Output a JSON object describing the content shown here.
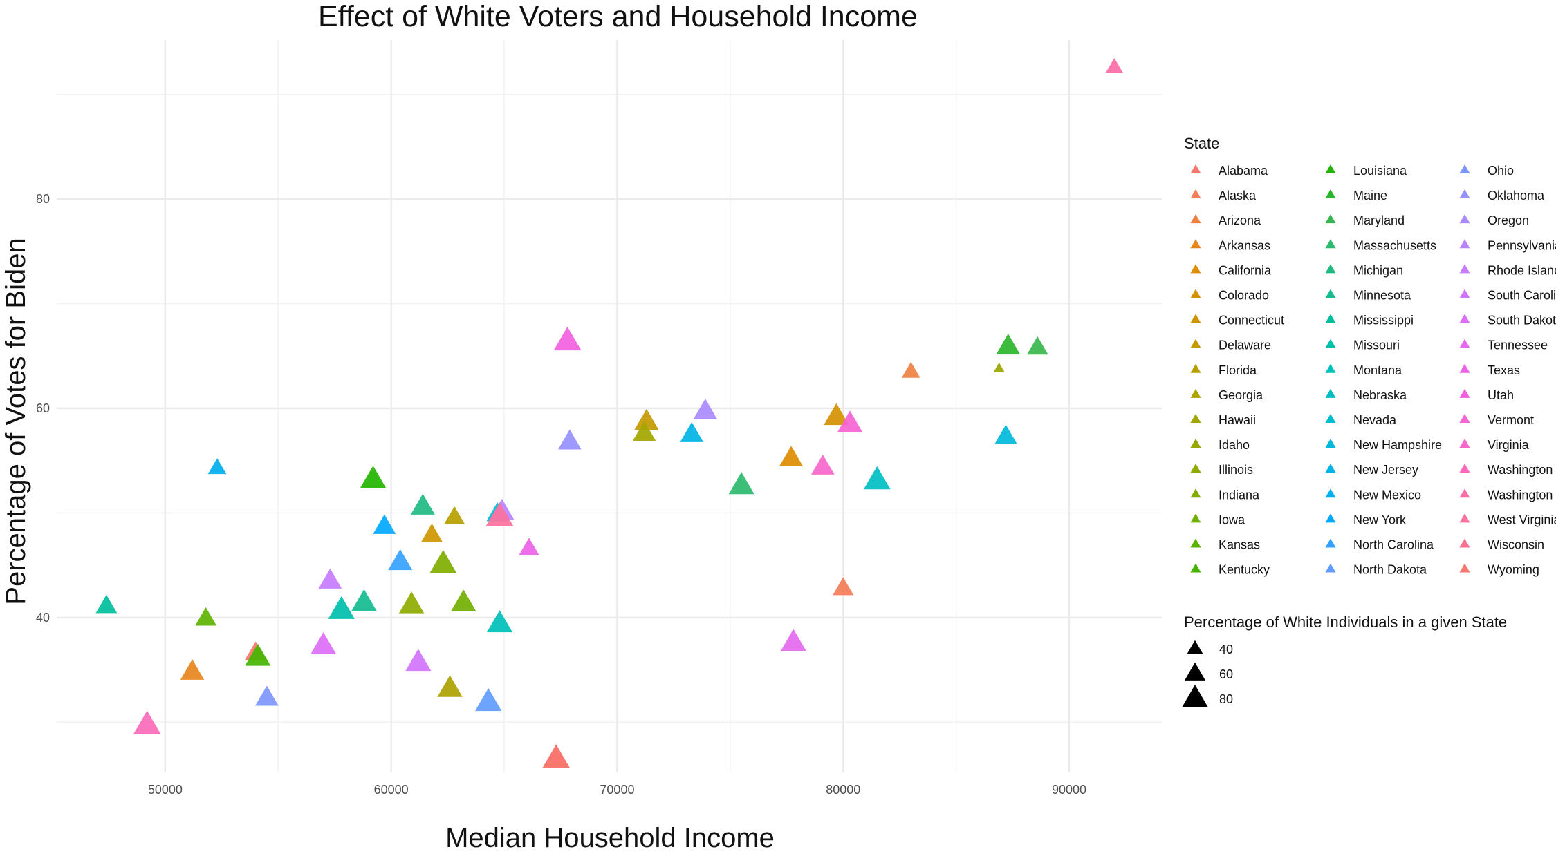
{
  "chart_data": {
    "type": "scatter",
    "title": "Effect of White Voters and Household Income",
    "xlabel": "Median Household Income",
    "ylabel": "Percentage of Votes for Biden",
    "xlim": [
      45200,
      94100
    ],
    "ylim": [
      25.2,
      95.2
    ],
    "x_ticks": [
      50000,
      60000,
      70000,
      80000,
      90000
    ],
    "y_ticks": [
      40,
      60,
      80
    ],
    "x_tick_labels": [
      "50000",
      "60000",
      "70000",
      "80000",
      "90000"
    ],
    "y_tick_labels": [
      "40",
      "60",
      "80"
    ],
    "grid": true,
    "legend_position": "right",
    "color_legend_title": "State",
    "size_legend_title": "Percentage of White Individuals in a given State",
    "size_legend": [
      {
        "label": "40",
        "value": 40
      },
      {
        "label": "60",
        "value": 60
      },
      {
        "label": "80",
        "value": 80
      }
    ],
    "series": [
      {
        "name": "Alabama",
        "color": "#F8766D",
        "x": 54000,
        "y": 36.6,
        "white_pct": 65
      },
      {
        "name": "Alaska",
        "color": "#F47C56",
        "x": 80000,
        "y": 42.8,
        "white_pct": 60
      },
      {
        "name": "Arizona",
        "color": "#EE8042",
        "x": 83000,
        "y": 63.5,
        "white_pct": 50
      },
      {
        "name": "Arkansas",
        "color": "#E7851E",
        "x": 51200,
        "y": 34.8,
        "white_pct": 72
      },
      {
        "name": "California",
        "color": "#DE8C00",
        "x": 77700,
        "y": 55.2,
        "white_pct": 72
      },
      {
        "name": "Colorado",
        "color": "#D59100",
        "x": 79700,
        "y": 59.2,
        "white_pct": 78
      },
      {
        "name": "Connecticut",
        "color": "#CD9600",
        "x": 61800,
        "y": 47.9,
        "white_pct": 62
      },
      {
        "name": "Delaware",
        "color": "#C39A00",
        "x": 71300,
        "y": 58.7,
        "white_pct": 75
      },
      {
        "name": "Florida",
        "color": "#B9A000",
        "x": 62800,
        "y": 49.6,
        "white_pct": 58
      },
      {
        "name": "Georgia",
        "color": "#ADA200",
        "x": 62600,
        "y": 33.2,
        "white_pct": 78
      },
      {
        "name": "Hawaii",
        "color": "#A3A500",
        "x": 71200,
        "y": 57.6,
        "white_pct": 70
      },
      {
        "name": "Idaho",
        "color": "#99A800",
        "x": 86900,
        "y": 63.8,
        "white_pct": 20
      },
      {
        "name": "Illinois",
        "color": "#8EAB00",
        "x": 60900,
        "y": 41.2,
        "white_pct": 78
      },
      {
        "name": "Indiana",
        "color": "#80AD00",
        "x": 62300,
        "y": 45.1,
        "white_pct": 85
      },
      {
        "name": "Iowa",
        "color": "#72B000",
        "x": 63200,
        "y": 41.4,
        "white_pct": 78
      },
      {
        "name": "Kansas",
        "color": "#5EB300",
        "x": 51800,
        "y": 39.9,
        "white_pct": 62
      },
      {
        "name": "Kentucky",
        "color": "#44B600",
        "x": 54100,
        "y": 36.2,
        "white_pct": 80
      },
      {
        "name": "Louisiana",
        "color": "#22B400",
        "x": 59200,
        "y": 53.2,
        "white_pct": 80
      },
      {
        "name": "Maine",
        "color": "#2CB52B",
        "x": 87300,
        "y": 65.9,
        "white_pct": 74
      },
      {
        "name": "Maryland",
        "color": "#39B64D",
        "x": 88600,
        "y": 65.8,
        "white_pct": 62
      },
      {
        "name": "Massachusetts",
        "color": "#2DB96E",
        "x": 75500,
        "y": 52.6,
        "white_pct": 80
      },
      {
        "name": "Michigan",
        "color": "#1FBA82",
        "x": 61400,
        "y": 50.6,
        "white_pct": 74
      },
      {
        "name": "Minnesota",
        "color": "#14BC8F",
        "x": 58800,
        "y": 41.4,
        "white_pct": 80
      },
      {
        "name": "Mississippi",
        "color": "#00BE9C",
        "x": 47400,
        "y": 41.1,
        "white_pct": 62
      },
      {
        "name": "Missouri",
        "color": "#00BFAC",
        "x": 57800,
        "y": 40.7,
        "white_pct": 84
      },
      {
        "name": "Montana",
        "color": "#00BFB8",
        "x": 64800,
        "y": 39.4,
        "white_pct": 80
      },
      {
        "name": "Nebraska",
        "color": "#00BFC4",
        "x": 81500,
        "y": 53.1,
        "white_pct": 85
      },
      {
        "name": "Nevada",
        "color": "#00BCD1",
        "x": 64700,
        "y": 49.9,
        "white_pct": 65
      },
      {
        "name": "New Hampshire",
        "color": "#00B8DB",
        "x": 87200,
        "y": 57.3,
        "white_pct": 66
      },
      {
        "name": "New Jersey",
        "color": "#00B4E5",
        "x": 73300,
        "y": 57.5,
        "white_pct": 70
      },
      {
        "name": "New Mexico",
        "color": "#00AFEE",
        "x": 52300,
        "y": 54.3,
        "white_pct": 50
      },
      {
        "name": "New York",
        "color": "#00A9FF",
        "x": 59700,
        "y": 48.7,
        "white_pct": 68
      },
      {
        "name": "North Carolina",
        "color": "#35A2FF",
        "x": 60400,
        "y": 45.3,
        "white_pct": 74
      },
      {
        "name": "North Dakota",
        "color": "#619CFF",
        "x": 64300,
        "y": 31.9,
        "white_pct": 84
      },
      {
        "name": "Ohio",
        "color": "#7D96FF",
        "x": 54500,
        "y": 32.3,
        "white_pct": 70
      },
      {
        "name": "Oklahoma",
        "color": "#9590FF",
        "x": 67900,
        "y": 56.8,
        "white_pct": 70
      },
      {
        "name": "Oregon",
        "color": "#A98AFF",
        "x": 73900,
        "y": 59.7,
        "white_pct": 73
      },
      {
        "name": "Pennsylvania",
        "color": "#B983FF",
        "x": 64900,
        "y": 50.1,
        "white_pct": 76
      },
      {
        "name": "Rhode Island",
        "color": "#C77CFF",
        "x": 57300,
        "y": 43.5,
        "white_pct": 70
      },
      {
        "name": "South Carolina",
        "color": "#D274FC",
        "x": 61200,
        "y": 35.7,
        "white_pct": 80
      },
      {
        "name": "South Dakota",
        "color": "#DC6EF7",
        "x": 57000,
        "y": 37.3,
        "white_pct": 80
      },
      {
        "name": "Tennessee",
        "color": "#E568EF",
        "x": 77800,
        "y": 37.6,
        "white_pct": 80
      },
      {
        "name": "Texas",
        "color": "#ED62E7",
        "x": 66100,
        "y": 46.6,
        "white_pct": 58
      },
      {
        "name": "Utah",
        "color": "#F25FDE",
        "x": 67800,
        "y": 66.4,
        "white_pct": 88
      },
      {
        "name": "Vermont",
        "color": "#F564D5",
        "x": 80300,
        "y": 58.5,
        "white_pct": 78
      },
      {
        "name": "Virginia",
        "color": "#F766CB",
        "x": 79100,
        "y": 54.4,
        "white_pct": 70
      },
      {
        "name": "Washington",
        "color": "#FA6AB8",
        "x": 49200,
        "y": 29.7,
        "white_pct": 88
      },
      {
        "name": "Washington DC",
        "color": "#FB6DA8",
        "x": 92000,
        "y": 92.6,
        "white_pct": 45
      },
      {
        "name": "West Virginia",
        "color": "#FC719E",
        "x": 64800,
        "y": 49.6,
        "white_pct": 88
      },
      {
        "name": "Wisconsin",
        "color": "#FB7290",
        "x": 67300,
        "y": 26.5,
        "white_pct": 85
      },
      {
        "name": "Wyoming",
        "color": "#F8766D",
        "x": 67300,
        "y": 26.5,
        "white_pct": 85
      }
    ]
  }
}
